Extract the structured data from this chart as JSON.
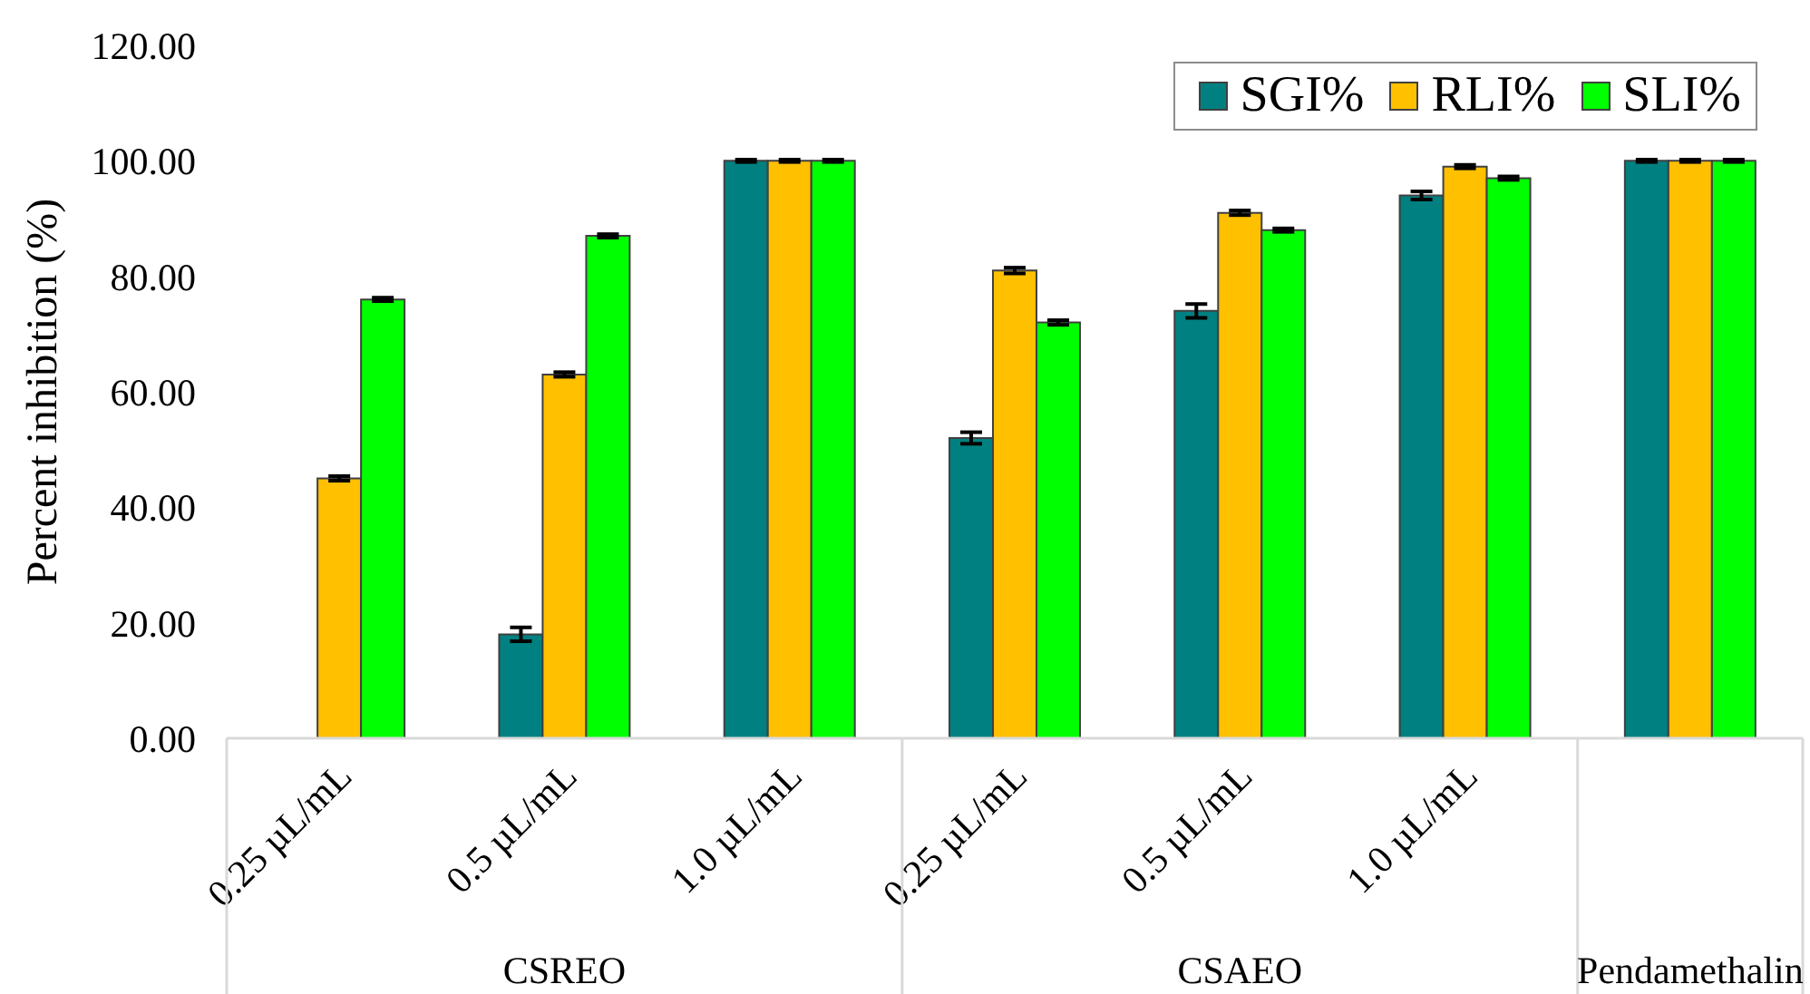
{
  "chart_data": {
    "type": "bar",
    "ylabel": "Percent inhibition (%)",
    "categories": [
      "0.25 µL/mL",
      "0.5 µL/mL",
      "1.0 µL/mL",
      "0.25 µL/mL",
      "0.5 µL/mL",
      "1.0 µL/mL",
      null
    ],
    "series": [
      {
        "name": "SGI%",
        "color": "#008080",
        "values": [
          0,
          18,
          100,
          52,
          74,
          94,
          100
        ],
        "errors": [
          null,
          1.2,
          0.2,
          1,
          1.2,
          0.7,
          0.2
        ]
      },
      {
        "name": "RLI%",
        "color": "#ffc000",
        "values": [
          45,
          63,
          100,
          81,
          91,
          99,
          100
        ],
        "errors": [
          0.4,
          0.4,
          0.2,
          0.5,
          0.4,
          0.3,
          0.2
        ]
      },
      {
        "name": "SLI%",
        "color": "#00ff00",
        "values": [
          76,
          87,
          100,
          72,
          88,
          97,
          100
        ],
        "errors": [
          0.3,
          0.3,
          0.2,
          0.4,
          0.3,
          0.3,
          0.2
        ]
      }
    ],
    "ylim": [
      0,
      120
    ],
    "yticks": [
      {
        "value": 0,
        "label": "0.00"
      },
      {
        "value": 20,
        "label": "20.00"
      },
      {
        "value": 40,
        "label": "40.00"
      },
      {
        "value": 60,
        "label": "60.00"
      },
      {
        "value": 80,
        "label": "80.00"
      },
      {
        "value": 100,
        "label": "100.00"
      },
      {
        "value": 120,
        "label": "120.00"
      }
    ],
    "legend": "top right",
    "annotations": [
      "CSREO",
      "CSAEO",
      "Pendamethalin"
    ]
  }
}
